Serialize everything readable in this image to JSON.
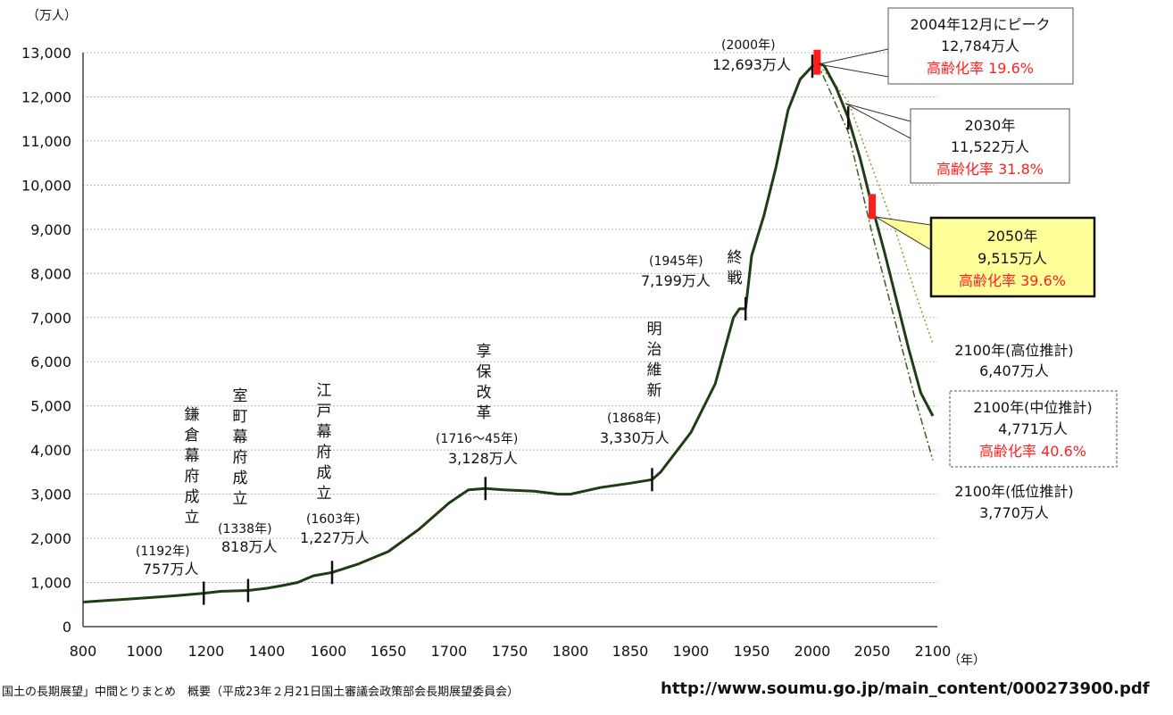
{
  "chart_data": {
    "type": "line",
    "ylabel": "（万人）",
    "xlabel": "（年）",
    "xlim": [
      800,
      2100
    ],
    "ylim": [
      0,
      13000
    ],
    "x_ticks": [
      "800",
      "1000",
      "1200",
      "1400",
      "1600",
      "1650",
      "1700",
      "1750",
      "1800",
      "1850",
      "1900",
      "1950",
      "2000",
      "2050",
      "2100"
    ],
    "y_ticks": [
      "0",
      "1,000",
      "2,000",
      "3,000",
      "4,000",
      "5,000",
      "6,000",
      "7,000",
      "8,000",
      "9,000",
      "10,000",
      "11,000",
      "12,000",
      "13,000"
    ],
    "grid": "horizontal",
    "series": [
      {
        "name": "",
        "style": "solid",
        "color": "#1f3d14",
        "points": [
          [
            800,
            555
          ],
          [
            1000,
            650
          ],
          [
            1100,
            700
          ],
          [
            1192,
            757
          ],
          [
            1250,
            800
          ],
          [
            1338,
            818
          ],
          [
            1400,
            870
          ],
          [
            1450,
            930
          ],
          [
            1500,
            1000
          ],
          [
            1550,
            1150
          ],
          [
            1603,
            1227
          ],
          [
            1625,
            1420
          ],
          [
            1650,
            1700
          ],
          [
            1675,
            2200
          ],
          [
            1700,
            2800
          ],
          [
            1716,
            3100
          ],
          [
            1730,
            3128
          ],
          [
            1745,
            3100
          ],
          [
            1770,
            3070
          ],
          [
            1790,
            3000
          ],
          [
            1800,
            3000
          ],
          [
            1825,
            3150
          ],
          [
            1850,
            3250
          ],
          [
            1868,
            3330
          ],
          [
            1875,
            3500
          ],
          [
            1900,
            4400
          ],
          [
            1920,
            5500
          ],
          [
            1935,
            7000
          ],
          [
            1940,
            7200
          ],
          [
            1945,
            7199
          ],
          [
            1950,
            8400
          ],
          [
            1960,
            9300
          ],
          [
            1970,
            10400
          ],
          [
            1980,
            11700
          ],
          [
            1990,
            12400
          ],
          [
            2000,
            12693
          ],
          [
            2004,
            12784
          ],
          [
            2010,
            12700
          ],
          [
            2020,
            12200
          ],
          [
            2030,
            11522
          ],
          [
            2040,
            10600
          ],
          [
            2050,
            9515
          ],
          [
            2060,
            8500
          ],
          [
            2070,
            7400
          ],
          [
            2080,
            6300
          ],
          [
            2090,
            5300
          ],
          [
            2100,
            4771
          ]
        ]
      },
      {
        "name": "高位推計",
        "style": "dotted",
        "color": "#9a9a2a",
        "points": [
          [
            2004,
            12784
          ],
          [
            2030,
            11900
          ],
          [
            2050,
            10400
          ],
          [
            2070,
            8900
          ],
          [
            2085,
            7600
          ],
          [
            2100,
            6407
          ]
        ]
      },
      {
        "name": "低位推計",
        "style": "dashdot",
        "color": "#3d5a1c",
        "points": [
          [
            2004,
            12784
          ],
          [
            2030,
            11200
          ],
          [
            2050,
            8900
          ],
          [
            2070,
            6800
          ],
          [
            2085,
            5200
          ],
          [
            2100,
            3770
          ]
        ]
      }
    ],
    "markers": [
      {
        "x": 1192,
        "y": 757,
        "color": "#111111"
      },
      {
        "x": 1338,
        "y": 818,
        "color": "#111111"
      },
      {
        "x": 1603,
        "y": 1227,
        "color": "#111111"
      },
      {
        "x": 1730,
        "y": 3128,
        "color": "#111111"
      },
      {
        "x": 1868,
        "y": 3330,
        "color": "#111111"
      },
      {
        "x": 1945,
        "y": 7199,
        "color": "#111111"
      },
      {
        "x": 2000,
        "y": 12693,
        "color": "#111111"
      },
      {
        "x": 2030,
        "y": 11522,
        "color": "#111111"
      },
      {
        "x": 2004,
        "y": 12784,
        "color": "#ff1e1e"
      },
      {
        "x": 2050,
        "y": 9515,
        "color": "#ff1e1e"
      }
    ],
    "annotations": [
      {
        "id": "kamakura",
        "event": "鎌倉幕府成立",
        "year": "(1192年)",
        "value": "757万人"
      },
      {
        "id": "muromachi",
        "event": "室町幕府成立",
        "year": "(1338年)",
        "value": "818万人"
      },
      {
        "id": "edo",
        "event": "江戸幕府成立",
        "year": "(1603年)",
        "value": "1,227万人"
      },
      {
        "id": "kyoho",
        "event": "享保改革",
        "year": "(1716～45年)",
        "value": "3,128万人"
      },
      {
        "id": "meiji",
        "event": "明治維新",
        "year": "(1868年)",
        "value": "3,330万人"
      },
      {
        "id": "shusen",
        "event": "終戦",
        "year": "(1945年)",
        "value": "7,199万人"
      },
      {
        "id": "y2000",
        "year": "(2000年)",
        "value": "12,693万人"
      }
    ],
    "callouts": [
      {
        "id": "peak",
        "line1": "2004年12月にピーク",
        "line2": "12,784万人",
        "line3": "高齢化率 19.6%"
      },
      {
        "id": "c2030",
        "line1": "2030年",
        "line2": "11,522万人",
        "line3": "高齢化率 31.8%"
      },
      {
        "id": "c2050",
        "line1": "2050年",
        "line2": "9,515万人",
        "line3": "高齢化率 39.6%"
      },
      {
        "id": "c2100mid",
        "line1": "2100年(中位推計)",
        "line2": "4,771万人",
        "line3": "高齢化率 40.6%"
      }
    ],
    "labels_2100": {
      "high_1": "2100年(高位推計)",
      "high_2": "6,407万人",
      "low_1": "2100年(低位推計)",
      "low_2": "3,770万人"
    }
  },
  "footer": {
    "source": "国土の長期展望」中間とりまとめ　概要（平成23年２月21日国土審議会政策部会長期展望委員会）",
    "url": "http://www.soumu.go.jp/main_content/000273900.pdf"
  }
}
